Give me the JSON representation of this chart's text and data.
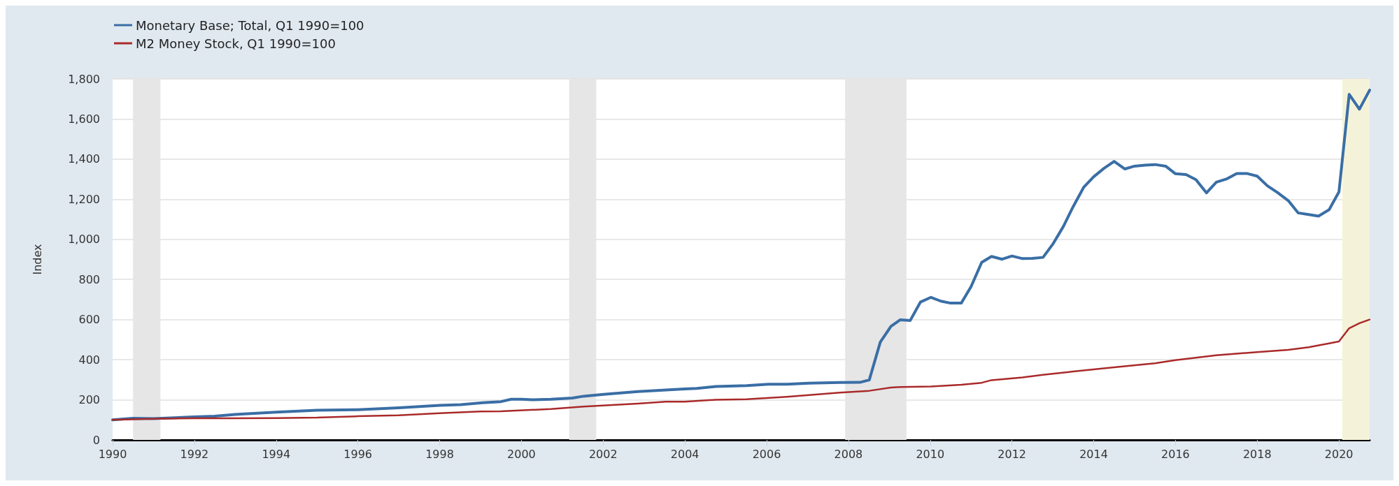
{
  "chart_data": {
    "type": "line",
    "ylabel": "Index",
    "legend": "top left",
    "grid": "y",
    "marker": "none",
    "line_style": "solid",
    "xlim": [
      1990,
      2020.75
    ],
    "xticks": [
      1990,
      1992,
      1994,
      1996,
      1998,
      2000,
      2002,
      2004,
      2006,
      2008,
      2010,
      2012,
      2014,
      2016,
      2018,
      2020
    ],
    "ylim": [
      0,
      1800
    ],
    "yticks": [
      0,
      {
        "value": 200,
        "label": "200"
      },
      {
        "value": 400,
        "label": "400"
      },
      {
        "value": 600,
        "label": "600"
      },
      {
        "value": 800,
        "label": "800"
      },
      {
        "value": 1000,
        "label": "1,000"
      },
      {
        "value": 1200,
        "label": "1,200"
      },
      {
        "value": 1400,
        "label": "1,400"
      },
      {
        "value": 1600,
        "label": "1,600"
      },
      {
        "value": 1800,
        "label": "1,800"
      }
    ],
    "bands": [
      {
        "axis": "x",
        "from": 1990.5,
        "to": 1991.17,
        "color": "#e6e6e6"
      },
      {
        "axis": "x",
        "from": 2001.17,
        "to": 2001.83,
        "color": "#e6e6e6"
      },
      {
        "axis": "x",
        "from": 2007.92,
        "to": 2009.42,
        "color": "#e6e6e6"
      },
      {
        "axis": "x",
        "from": 2020.08,
        "to": 2020.75,
        "color": "#f4f3d9"
      }
    ],
    "series": [
      {
        "name": "Monetary Base; Total, Q1 1990=100",
        "color": "#3a6ea5",
        "x": [
          1990,
          1990.5,
          1991,
          1992,
          1992.5,
          1993,
          1994,
          1995,
          1996,
          1997,
          1998,
          1998.52,
          1999.05,
          1999.5,
          1999.75,
          2000,
          2000.27,
          2000.72,
          2001.25,
          2001.52,
          2002.01,
          2002.85,
          2003.46,
          2003.99,
          2004.29,
          2004.75,
          2005.51,
          2006.04,
          2006.5,
          2007.03,
          2007.79,
          2008.28,
          2008.51,
          2008.78,
          2009.04,
          2009.27,
          2009.51,
          2009.76,
          2010.02,
          2010.26,
          2010.5,
          2010.76,
          2011.0,
          2011.26,
          2011.5,
          2011.76,
          2012.0,
          2012.26,
          2012.5,
          2012.76,
          2013.0,
          2013.26,
          2013.5,
          2013.76,
          2014.0,
          2014.25,
          2014.5,
          2014.76,
          2015.0,
          2015.26,
          2015.5,
          2015.76,
          2016.0,
          2016.26,
          2016.5,
          2016.76,
          2017.0,
          2017.26,
          2017.5,
          2017.76,
          2018.0,
          2018.25,
          2018.5,
          2018.76,
          2019.0,
          2019.26,
          2019.5,
          2019.76,
          2020.0,
          2020.25,
          2020.5,
          2020.75
        ],
        "values": [
          100,
          108,
          106,
          115,
          118,
          127,
          138,
          148,
          151,
          160,
          172,
          176,
          185,
          191,
          203,
          203,
          200,
          203,
          209,
          218,
          227,
          241,
          248,
          254,
          257,
          266,
          271,
          278,
          278,
          283,
          286,
          287,
          299,
          488,
          566,
          599,
          595,
          687,
          711,
          692,
          682,
          682,
          764,
          885,
          915,
          901,
          917,
          904,
          905,
          910,
          976,
          1065,
          1164,
          1261,
          1312,
          1354,
          1389,
          1351,
          1365,
          1370,
          1373,
          1365,
          1327,
          1323,
          1298,
          1232,
          1285,
          1302,
          1328,
          1328,
          1315,
          1267,
          1233,
          1193,
          1132,
          1124,
          1116,
          1148,
          1237,
          1723,
          1649,
          1744
        ]
      },
      {
        "name": "M2 Money Stock, Q1 1990=100",
        "color": "#aa2a2a",
        "x": [
          1990,
          1991,
          1992,
          1993,
          1994,
          1995,
          1996,
          1997,
          1998,
          1999,
          1999.5,
          2000.72,
          2001.52,
          2002.85,
          2003.53,
          2003.99,
          2004.75,
          2005.51,
          2006.5,
          2007.79,
          2008.51,
          2009.04,
          2009.27,
          2010.02,
          2010.76,
          2011.26,
          2011.5,
          2012.26,
          2012.76,
          2013.5,
          2014.5,
          2015.5,
          2016.0,
          2017.0,
          2018.0,
          2018.76,
          2019.26,
          2019.76,
          2020.0,
          2020.25,
          2020.5,
          2020.75
        ],
        "values": [
          100,
          105,
          108,
          108,
          109,
          111,
          118,
          123,
          133,
          142,
          143,
          154,
          166,
          181,
          191,
          191,
          200,
          203,
          215,
          236,
          245,
          261,
          264,
          266,
          275,
          285,
          298,
          312,
          325,
          341,
          362,
          382,
          398,
          422,
          438,
          449,
          462,
          481,
          491,
          557,
          582,
          600
        ]
      }
    ]
  }
}
